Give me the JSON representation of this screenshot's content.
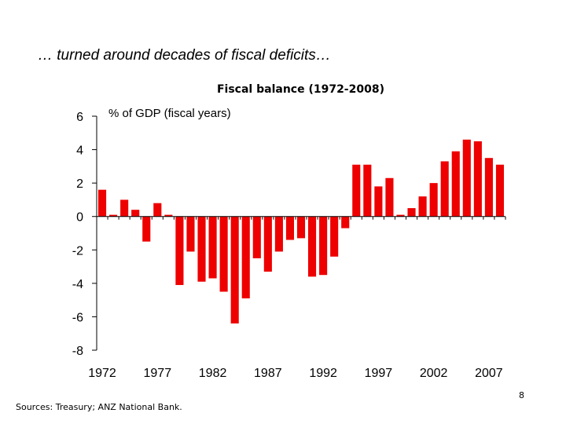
{
  "slide": {
    "title": "… turned around decades of fiscal deficits…",
    "page_number": "8",
    "sources": "Sources:  Treasury; ANZ National Bank."
  },
  "chart_data": {
    "type": "bar",
    "title": "Fiscal balance (1972-2008)",
    "subtitle": "% of GDP (fiscal years)",
    "xlabel": "",
    "ylabel": "",
    "ylim": [
      -8,
      6
    ],
    "yticks": [
      "6",
      "4",
      "2",
      "0",
      "-2",
      "-4",
      "-6",
      "-8"
    ],
    "x_tick_labels": [
      "1972",
      "1977",
      "1982",
      "1987",
      "1992",
      "1997",
      "2002",
      "2007"
    ],
    "grid": false,
    "legend": "none",
    "bar_color": "#ee0000",
    "categories": [
      "1972",
      "1973",
      "1974",
      "1975",
      "1976",
      "1977",
      "1978",
      "1979",
      "1980",
      "1981",
      "1982",
      "1983",
      "1984",
      "1985",
      "1986",
      "1987",
      "1988",
      "1989",
      "1990",
      "1991",
      "1992",
      "1993",
      "1994",
      "1995",
      "1996",
      "1997",
      "1998",
      "1999",
      "2000",
      "2001",
      "2002",
      "2003",
      "2004",
      "2005",
      "2006",
      "2007",
      "2008"
    ],
    "values": [
      1.6,
      0.1,
      1.0,
      0.4,
      -1.5,
      0.8,
      0.1,
      -4.1,
      -2.1,
      -3.9,
      -3.7,
      -4.5,
      -6.4,
      -4.9,
      -2.5,
      -3.3,
      -2.1,
      -1.4,
      -1.3,
      -3.6,
      -3.5,
      -2.4,
      -0.7,
      3.1,
      3.1,
      1.8,
      2.3,
      0.1,
      0.5,
      1.2,
      2.0,
      3.3,
      3.9,
      4.6,
      4.5,
      3.5,
      3.1
    ]
  }
}
